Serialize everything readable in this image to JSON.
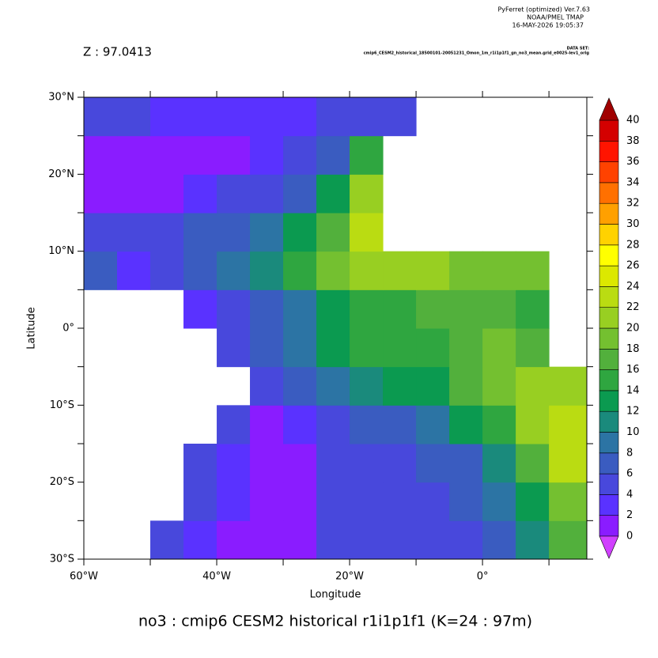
{
  "chart_data": {
    "type": "heatmap",
    "header": [
      "PyFerret (optimized) Ver.7.63",
      "NOAA/PMEL TMAP",
      "16-MAY-2026 19:05:37"
    ],
    "dataset_heading": "DATA SET:",
    "dataset": "cmip6_CESM2_historical_18500101-20051231_Omon_1m_r1i1p1f1_gn_no3_mean.grid_e0025-lev1_orig",
    "subtitle": "Z : 97.0413",
    "title": "no3 : cmip6 CESM2 historical r1i1p1f1   (K=24 : 97m)",
    "x_label": "Longitude",
    "y_label": "Latitude",
    "xlim": [
      -60,
      15.7
    ],
    "ylim": [
      -30,
      30
    ],
    "xticks": [
      {
        "value": -60,
        "label": "60°W"
      },
      {
        "value": -40,
        "label": "40°W"
      },
      {
        "value": -20,
        "label": "20°W"
      },
      {
        "value": 0,
        "label": "0°"
      }
    ],
    "xminor": [
      -50,
      -30,
      -10,
      10
    ],
    "yticks": [
      {
        "value": 30,
        "label": "30°N"
      },
      {
        "value": 20,
        "label": "20°N"
      },
      {
        "value": 10,
        "label": "10°N"
      },
      {
        "value": 0,
        "label": "0°"
      },
      {
        "value": -10,
        "label": "10°S"
      },
      {
        "value": -20,
        "label": "20°S"
      },
      {
        "value": -30,
        "label": "30°S"
      }
    ],
    "yminor": [
      25,
      15,
      5,
      -5,
      -15,
      -25
    ],
    "x_edges": [
      -60,
      -55,
      -50,
      -45,
      -40,
      -35,
      -30,
      -25,
      -20,
      -15,
      -10,
      -5,
      0,
      5,
      10,
      15.7
    ],
    "y_edges": [
      -30,
      -25,
      -20,
      -15,
      -10,
      -5,
      0,
      5,
      10,
      15,
      20,
      25,
      30
    ],
    "z": [
      [
        null,
        null,
        5,
        2,
        1,
        1,
        1,
        4,
        5,
        5,
        5,
        5,
        6,
        10,
        16
      ],
      [
        null,
        null,
        null,
        4,
        3,
        1,
        1,
        5,
        5,
        5,
        5,
        6,
        8,
        12,
        18
      ],
      [
        null,
        null,
        null,
        4,
        2,
        1,
        1,
        4,
        5,
        5,
        6,
        7,
        10,
        16,
        22
      ],
      [
        null,
        null,
        null,
        null,
        4,
        1,
        3,
        5,
        6,
        7,
        9,
        12,
        15,
        20,
        22
      ],
      [
        null,
        null,
        null,
        null,
        null,
        4,
        6,
        8,
        10,
        12,
        13,
        16,
        18,
        20,
        21
      ],
      [
        null,
        null,
        null,
        null,
        4,
        6,
        9,
        12,
        14,
        14,
        15,
        17,
        18,
        16,
        null
      ],
      [
        null,
        null,
        null,
        3,
        5,
        6,
        9,
        12,
        14,
        14,
        16,
        17,
        17,
        14,
        null
      ],
      [
        7,
        2,
        5,
        6,
        8,
        11,
        14,
        18,
        20,
        20,
        20,
        18,
        18,
        18,
        null
      ],
      [
        5,
        5,
        5,
        6,
        7,
        9,
        13,
        17,
        22,
        null,
        null,
        null,
        null,
        null,
        null
      ],
      [
        1,
        1,
        1,
        3,
        5,
        5,
        7,
        12,
        20,
        null,
        null,
        null,
        null,
        null,
        null
      ],
      [
        1,
        1,
        1,
        1,
        1,
        3,
        5,
        6,
        14,
        null,
        null,
        null,
        null,
        null,
        null
      ],
      [
        4,
        4,
        2,
        2,
        2,
        2,
        2,
        4,
        4,
        5,
        null,
        null,
        null,
        null,
        null
      ]
    ],
    "levels": [
      0,
      2,
      4,
      6,
      8,
      10,
      12,
      14,
      16,
      18,
      20,
      22,
      24,
      26,
      28,
      30,
      32,
      34,
      36,
      38,
      40
    ],
    "colors": [
      "#8a1cff",
      "#5a32ff",
      "#4848dc",
      "#3a5cc0",
      "#2c74a4",
      "#1a8a7c",
      "#0b9a50",
      "#2fa640",
      "#52b03c",
      "#74c030",
      "#98cf22",
      "#badc12",
      "#dce800",
      "#ffff00",
      "#ffd200",
      "#ffa000",
      "#ff7000",
      "#ff4200",
      "#ff1400",
      "#d40000"
    ],
    "under_color": "#d040ff",
    "over_color": "#a00000"
  }
}
